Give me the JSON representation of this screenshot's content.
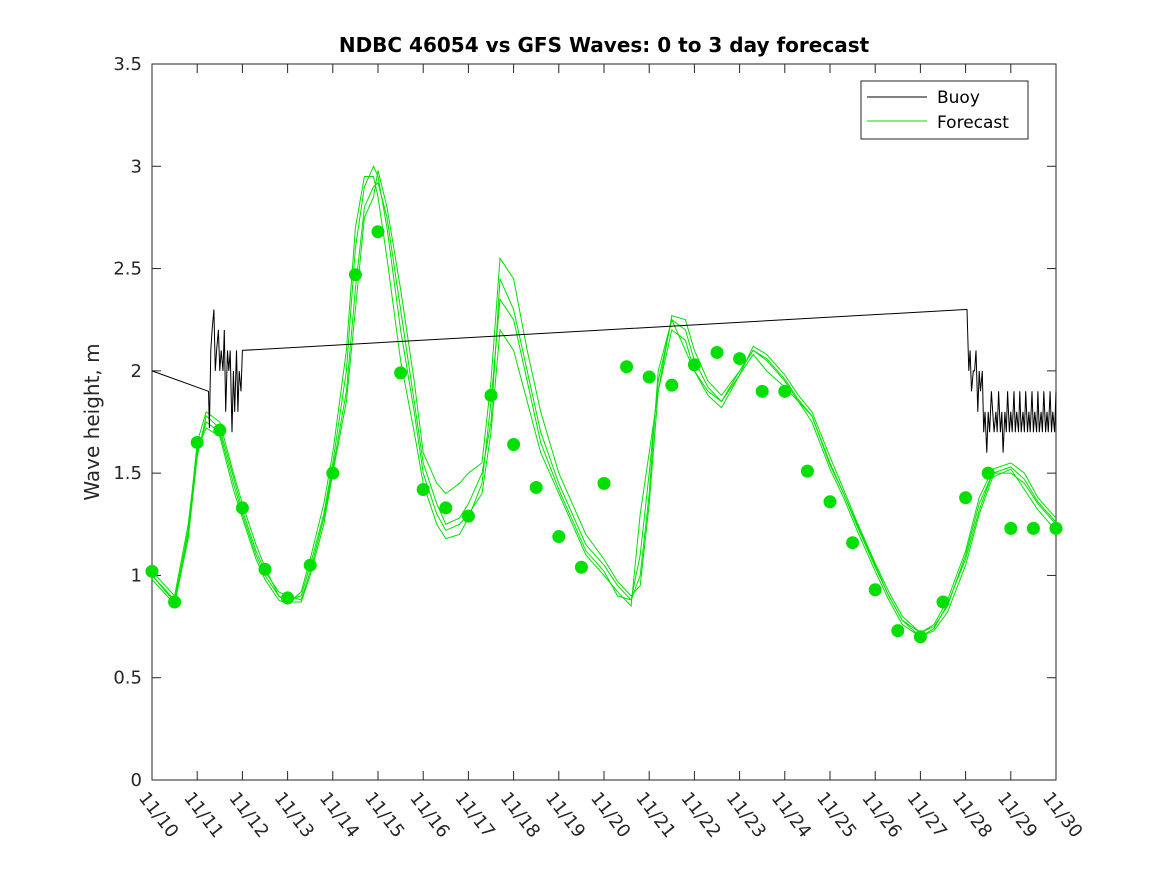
{
  "chart_data": {
    "type": "line",
    "title": "NDBC 46054 vs GFS Waves: 0 to 3 day forecast",
    "xlabel": "",
    "ylabel": "Wave height, m",
    "xlim": [
      0,
      20
    ],
    "ylim": [
      0,
      3.5
    ],
    "x_tick_labels": [
      "11/10",
      "11/11",
      "11/12",
      "11/13",
      "11/14",
      "11/15",
      "11/16",
      "11/17",
      "11/18",
      "11/19",
      "11/20",
      "11/21",
      "11/22",
      "11/23",
      "11/24",
      "11/25",
      "11/26",
      "11/27",
      "11/28",
      "11/29",
      "11/30"
    ],
    "y_ticks": [
      0,
      0.5,
      1,
      1.5,
      2,
      2.5,
      3,
      3.5
    ],
    "y_tick_labels": [
      "0",
      "0.5",
      "1",
      "1.5",
      "2",
      "2.5",
      "3",
      "3.5"
    ],
    "legend": {
      "placement": "top-right",
      "entries": [
        {
          "label": "Buoy",
          "color": "#000000"
        },
        {
          "label": "Forecast",
          "color": "#00e000"
        }
      ]
    },
    "buoy": {
      "name": "Buoy",
      "color": "#000000",
      "x": [
        0,
        1.25,
        1.27,
        1.3,
        1.33,
        1.37,
        1.4,
        1.43,
        1.47,
        1.5,
        1.53,
        1.57,
        1.6,
        1.63,
        1.67,
        1.7,
        1.73,
        1.77,
        1.8,
        1.83,
        1.87,
        1.9,
        1.93,
        1.97,
        2.0,
        18.0,
        18.03,
        18.07,
        18.1,
        18.13,
        18.17,
        18.2,
        18.23,
        18.27,
        18.3,
        18.33,
        18.37,
        18.4,
        18.43,
        18.47,
        18.5,
        18.53,
        18.57,
        18.6,
        18.63,
        18.67,
        18.7,
        18.73,
        18.77,
        18.8,
        18.83,
        18.87,
        18.9,
        18.93,
        18.97,
        19.0,
        19.03,
        19.07,
        19.1,
        19.13,
        19.17,
        19.2,
        19.23,
        19.27,
        19.3,
        19.33,
        19.37,
        19.4,
        19.43,
        19.47,
        19.5,
        19.53,
        19.57,
        19.6,
        19.63,
        19.67,
        19.7,
        19.73,
        19.77,
        19.8,
        19.83,
        19.87,
        19.9,
        19.93,
        19.97,
        20.0
      ],
      "y": [
        2.0,
        1.9,
        1.72,
        2.1,
        2.2,
        2.3,
        2.0,
        2.1,
        2.2,
        2.0,
        2.1,
        2.0,
        2.2,
        1.8,
        2.1,
        2.0,
        2.1,
        1.7,
        2.0,
        1.8,
        2.1,
        1.8,
        2.0,
        1.9,
        2.1,
        2.3,
        2.3,
        2.0,
        2.1,
        1.9,
        2.0,
        2.0,
        2.1,
        1.8,
        2.0,
        1.9,
        2.0,
        1.7,
        1.8,
        1.6,
        1.8,
        1.7,
        1.9,
        1.8,
        1.7,
        1.8,
        1.7,
        1.9,
        1.7,
        1.8,
        1.6,
        1.8,
        1.7,
        1.9,
        1.7,
        1.8,
        1.7,
        1.9,
        1.7,
        1.8,
        1.7,
        1.9,
        1.7,
        1.8,
        1.7,
        1.9,
        1.7,
        1.8,
        1.7,
        1.9,
        1.7,
        1.8,
        1.7,
        1.9,
        1.7,
        1.8,
        1.7,
        1.9,
        1.7,
        1.8,
        1.7,
        1.9,
        1.7,
        1.8,
        1.7,
        1.9
      ]
    },
    "forecast_markers": {
      "name": "Forecast",
      "color": "#00e000",
      "x": [
        0,
        0.5,
        1.0,
        1.5,
        2.0,
        2.5,
        3.0,
        3.5,
        4.0,
        4.5,
        5.0,
        5.5,
        6.0,
        6.5,
        7.0,
        7.5,
        8.0,
        8.5,
        9.0,
        9.5,
        10.0,
        10.5,
        11.0,
        11.5,
        12.0,
        12.5,
        13.0,
        13.5,
        14.0,
        14.5,
        15.0,
        15.5,
        16.0,
        16.5,
        17.0,
        17.5,
        18.0,
        18.5,
        19.0,
        19.5,
        20.0
      ],
      "y": [
        1.02,
        0.87,
        1.65,
        1.71,
        1.33,
        1.03,
        0.89,
        1.05,
        1.5,
        2.47,
        2.68,
        1.99,
        1.42,
        1.33,
        1.29,
        1.88,
        1.64,
        1.43,
        1.19,
        1.04,
        1.45,
        2.02,
        1.97,
        1.93,
        2.03,
        2.09,
        2.06,
        1.9,
        1.9,
        1.51,
        1.36,
        1.16,
        0.93,
        0.73,
        0.7,
        0.87,
        1.38,
        1.5,
        1.23,
        1.23,
        1.23
      ]
    },
    "forecast_runs": [
      {
        "x": [
          0.0,
          0.5,
          0.8,
          1.0,
          1.2,
          1.5,
          1.8,
          2.0,
          2.3,
          2.5,
          2.8,
          3.0,
          3.3,
          3.5,
          3.8,
          4.0,
          4.3,
          4.5,
          4.7,
          4.9,
          5.0,
          5.2,
          5.5,
          5.8,
          6.0,
          6.3,
          6.5,
          6.8,
          7.0,
          7.3,
          7.5,
          7.7,
          8.0,
          8.3,
          8.6,
          9.0,
          9.3,
          9.6,
          10.0,
          10.3,
          10.6,
          10.8,
          11.0,
          11.2,
          11.5,
          11.8,
          12.0,
          12.3,
          12.6,
          13.0,
          13.3,
          13.6,
          14.0,
          14.3,
          14.6,
          15.0,
          15.3,
          15.6,
          16.0,
          16.3,
          16.6,
          17.0,
          17.3,
          17.6,
          18.0,
          18.3,
          18.6,
          19.0,
          19.3,
          19.6,
          20.0
        ],
        "y": [
          1.0,
          0.88,
          1.2,
          1.6,
          1.75,
          1.7,
          1.45,
          1.3,
          1.1,
          1.0,
          0.9,
          0.88,
          0.9,
          1.05,
          1.3,
          1.55,
          2.0,
          2.6,
          2.9,
          3.0,
          2.95,
          2.7,
          2.2,
          1.8,
          1.5,
          1.3,
          1.22,
          1.25,
          1.3,
          1.4,
          1.7,
          2.2,
          2.1,
          1.85,
          1.6,
          1.4,
          1.25,
          1.1,
          1.0,
          0.92,
          0.85,
          1.3,
          1.6,
          1.9,
          2.2,
          2.15,
          2.0,
          1.9,
          1.85,
          2.0,
          2.1,
          2.05,
          1.95,
          1.85,
          1.78,
          1.55,
          1.4,
          1.25,
          1.05,
          0.9,
          0.78,
          0.72,
          0.75,
          0.85,
          1.1,
          1.35,
          1.5,
          1.5,
          1.45,
          1.35,
          1.25
        ]
      },
      {
        "x": [
          0.0,
          0.5,
          0.8,
          1.0,
          1.2,
          1.5,
          1.8,
          2.0,
          2.3,
          2.5,
          2.8,
          3.0,
          3.3,
          3.5,
          3.8,
          4.0,
          4.3,
          4.5,
          4.7,
          4.9,
          5.0,
          5.2,
          5.5,
          5.8,
          6.0,
          6.3,
          6.5,
          6.8,
          7.0,
          7.3,
          7.5,
          7.7,
          8.0,
          8.3,
          8.6,
          9.0,
          9.3,
          9.6,
          10.0,
          10.3,
          10.6,
          10.8,
          11.0,
          11.2,
          11.5,
          11.8,
          12.0,
          12.3,
          12.6,
          13.0,
          13.3,
          13.6,
          14.0,
          14.3,
          14.6,
          15.0,
          15.3,
          15.6,
          16.0,
          16.3,
          16.6,
          17.0,
          17.3,
          17.6,
          18.0,
          18.3,
          18.6,
          19.0,
          19.3,
          19.6,
          20.0
        ],
        "y": [
          1.02,
          0.9,
          1.25,
          1.62,
          1.72,
          1.68,
          1.42,
          1.28,
          1.08,
          0.98,
          0.88,
          0.86,
          0.92,
          1.08,
          1.35,
          1.6,
          2.1,
          2.7,
          2.95,
          2.95,
          2.85,
          2.55,
          2.05,
          1.7,
          1.45,
          1.25,
          1.18,
          1.2,
          1.28,
          1.45,
          1.85,
          2.35,
          2.25,
          1.95,
          1.65,
          1.42,
          1.27,
          1.12,
          1.02,
          0.9,
          0.88,
          1.1,
          1.5,
          1.95,
          2.25,
          2.1,
          2.0,
          1.88,
          1.82,
          1.98,
          2.08,
          2.0,
          1.92,
          1.85,
          1.75,
          1.52,
          1.38,
          1.22,
          1.02,
          0.88,
          0.76,
          0.7,
          0.73,
          0.82,
          1.05,
          1.3,
          1.48,
          1.52,
          1.42,
          1.32,
          1.22
        ]
      },
      {
        "x": [
          0.0,
          0.5,
          0.8,
          1.0,
          1.2,
          1.5,
          1.8,
          2.0,
          2.3,
          2.5,
          2.8,
          3.0,
          3.3,
          3.5,
          3.8,
          4.0,
          4.3,
          4.5,
          4.7,
          4.9,
          5.0,
          5.2,
          5.5,
          5.8,
          6.0,
          6.3,
          6.5,
          6.8,
          7.0,
          7.3,
          7.5,
          7.7,
          8.0,
          8.3,
          8.6,
          9.0,
          9.3,
          9.6,
          10.0,
          10.3,
          10.6,
          10.8,
          11.0,
          11.2,
          11.5,
          11.8,
          12.0,
          12.3,
          12.6,
          13.0,
          13.3,
          13.6,
          14.0,
          14.3,
          14.6,
          15.0,
          15.3,
          15.6,
          16.0,
          16.3,
          16.6,
          17.0,
          17.3,
          17.6,
          18.0,
          18.3,
          18.6,
          19.0,
          19.3,
          19.6,
          20.0
        ],
        "y": [
          0.98,
          0.86,
          1.18,
          1.58,
          1.78,
          1.72,
          1.48,
          1.32,
          1.12,
          1.02,
          0.92,
          0.9,
          0.88,
          1.02,
          1.28,
          1.52,
          1.9,
          2.4,
          2.8,
          2.9,
          2.92,
          2.75,
          2.3,
          1.85,
          1.55,
          1.35,
          1.25,
          1.28,
          1.35,
          1.5,
          1.75,
          2.45,
          2.3,
          2.0,
          1.7,
          1.45,
          1.3,
          1.15,
          1.05,
          0.95,
          0.88,
          1.0,
          1.4,
          2.0,
          2.25,
          2.2,
          2.05,
          1.92,
          1.85,
          1.98,
          2.12,
          2.08,
          1.98,
          1.88,
          1.8,
          1.58,
          1.42,
          1.26,
          1.06,
          0.92,
          0.8,
          0.72,
          0.76,
          0.88,
          1.12,
          1.38,
          1.52,
          1.55,
          1.5,
          1.38,
          1.28
        ]
      },
      {
        "x": [
          0.0,
          0.5,
          0.8,
          1.0,
          1.2,
          1.5,
          1.8,
          2.0,
          2.3,
          2.5,
          2.8,
          3.0,
          3.3,
          3.5,
          3.8,
          4.0,
          4.3,
          4.5,
          4.7,
          4.9,
          5.0,
          5.2,
          5.5,
          5.8,
          6.0,
          6.3,
          6.5,
          6.8,
          7.0,
          7.3,
          7.5,
          7.7,
          8.0,
          8.3,
          8.6,
          9.0,
          9.3,
          9.6,
          10.0,
          10.3,
          10.6,
          10.8,
          11.0,
          11.2,
          11.5,
          11.8,
          12.0,
          12.3,
          12.6,
          13.0,
          13.3,
          13.6,
          14.0,
          14.3,
          14.6,
          15.0,
          15.3,
          15.6,
          16.0,
          16.3,
          16.6,
          17.0,
          17.3,
          17.6,
          18.0,
          18.3,
          18.6,
          19.0,
          19.3,
          19.6,
          20.0
        ],
        "y": [
          1.0,
          0.87,
          1.22,
          1.65,
          1.8,
          1.75,
          1.5,
          1.35,
          1.15,
          1.04,
          0.9,
          0.87,
          0.87,
          1.0,
          1.25,
          1.5,
          1.85,
          2.3,
          2.75,
          2.85,
          2.98,
          2.8,
          2.4,
          1.95,
          1.6,
          1.45,
          1.4,
          1.45,
          1.5,
          1.55,
          1.95,
          2.55,
          2.45,
          2.1,
          1.8,
          1.5,
          1.35,
          1.2,
          1.08,
          0.97,
          0.9,
          0.95,
          1.35,
          1.9,
          2.27,
          2.25,
          2.1,
          1.95,
          1.88,
          2.0,
          2.1,
          2.06,
          1.96,
          1.86,
          1.78,
          1.54,
          1.4,
          1.24,
          1.04,
          0.9,
          0.78,
          0.7,
          0.74,
          0.86,
          1.08,
          1.32,
          1.5,
          1.53,
          1.47,
          1.36,
          1.26
        ]
      }
    ]
  }
}
